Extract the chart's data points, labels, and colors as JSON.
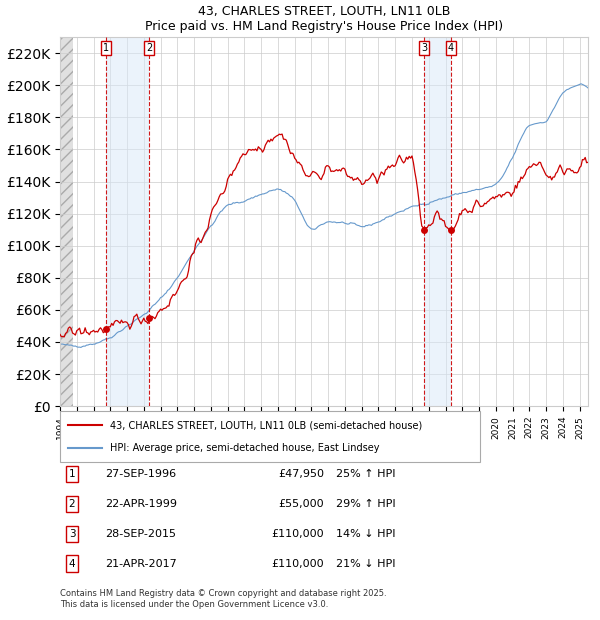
{
  "title": "43, CHARLES STREET, LOUTH, LN11 0LB",
  "subtitle": "Price paid vs. HM Land Registry's House Price Index (HPI)",
  "ylim": [
    0,
    230000
  ],
  "yticks": [
    0,
    20000,
    40000,
    60000,
    80000,
    100000,
    120000,
    140000,
    160000,
    180000,
    200000,
    220000
  ],
  "xlim_start": 1994.0,
  "xlim_end": 2025.5,
  "legend_line1": "43, CHARLES STREET, LOUTH, LN11 0LB (semi-detached house)",
  "legend_line2": "HPI: Average price, semi-detached house, East Lindsey",
  "transactions": [
    {
      "num": 1,
      "date_label": "27-SEP-1996",
      "price": 47950,
      "pct": "25%",
      "dir": "↑",
      "x": 1996.74
    },
    {
      "num": 2,
      "date_label": "22-APR-1999",
      "price": 55000,
      "pct": "29%",
      "dir": "↑",
      "x": 1999.31
    },
    {
      "num": 3,
      "date_label": "28-SEP-2015",
      "price": 110000,
      "pct": "14%",
      "dir": "↓",
      "x": 2015.74
    },
    {
      "num": 4,
      "date_label": "21-APR-2017",
      "price": 110000,
      "pct": "21%",
      "dir": "↓",
      "x": 2017.31
    }
  ],
  "footnote1": "Contains HM Land Registry data © Crown copyright and database right 2025.",
  "footnote2": "This data is licensed under the Open Government Licence v3.0.",
  "hpi_color": "#6699cc",
  "price_color": "#cc0000",
  "transaction_line_color": "#cc0000",
  "grid_color": "#cccccc",
  "background_color": "#ffffff"
}
